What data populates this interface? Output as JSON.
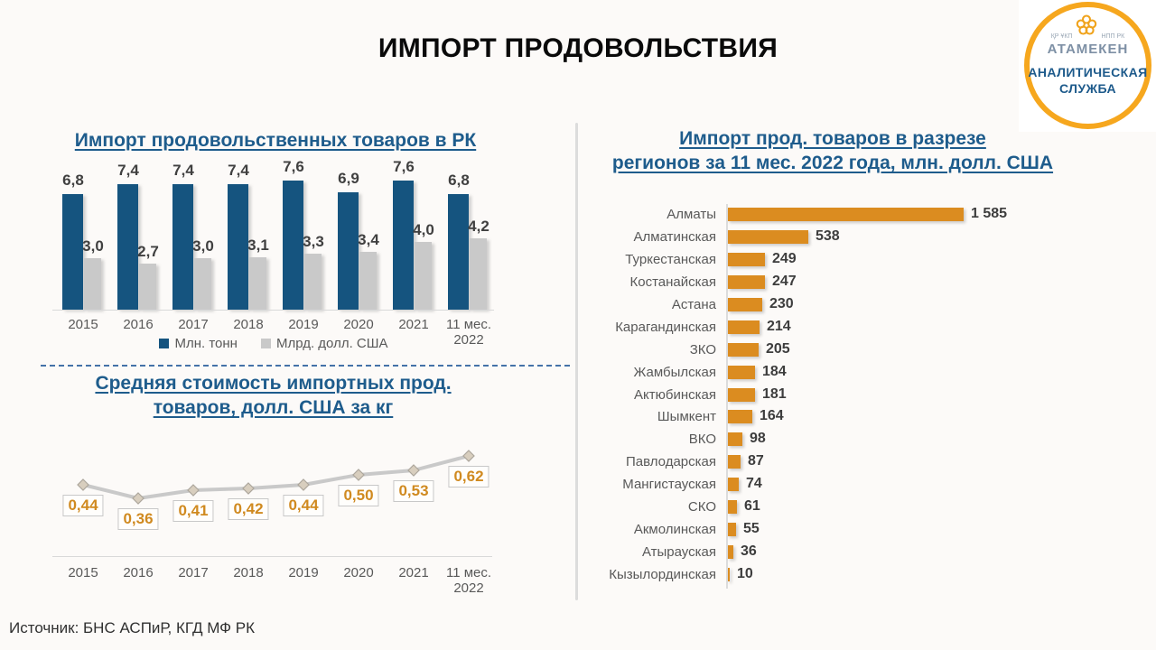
{
  "page": {
    "title": "ИМПОРТ ПРОДОВОЛЬСТВИЯ",
    "source": "Источник: БНС АСПиР, КГД МФ РК"
  },
  "logo": {
    "small_left": "ҚР ҰКП",
    "small_right": "НПП РК",
    "brand": "АТАМЕКЕН",
    "line1": "АНАЛИТИЧЕСКАЯ",
    "line2": "СЛУЖБА"
  },
  "colors": {
    "background": "#FCFAF8",
    "title_blue": "#1E5C8C",
    "bar_blue": "#15547F",
    "bar_gray": "#C9C9C9",
    "bar_orange": "#DB8C20",
    "value_dark": "#404040",
    "axis_gray": "#595959",
    "line_gray": "#C9C9C9",
    "marker_tan": "#D8CEBE",
    "label_orange": "#D08A20",
    "logo_ring_orange": "#F6A71E"
  },
  "chart_data": [
    {
      "id": "imports-food-rk",
      "type": "bar",
      "title": "Импорт продовольственных товаров в РК",
      "title_lines": [
        "Импорт продовольственных товаров в РК"
      ],
      "categories": [
        "2015",
        "2016",
        "2017",
        "2018",
        "2019",
        "2020",
        "2021",
        "11 мес. 2022"
      ],
      "series": [
        {
          "name": "Млн. тонн",
          "color": "#15547F",
          "values": [
            6.8,
            7.4,
            7.4,
            7.4,
            7.6,
            6.9,
            7.6,
            6.8
          ],
          "labels": [
            "6,8",
            "7,4",
            "7,4",
            "7,4",
            "7,6",
            "6,9",
            "7,6",
            "6,8"
          ]
        },
        {
          "name": "Млрд. долл. США",
          "color": "#C9C9C9",
          "values": [
            3.0,
            2.7,
            3.0,
            3.1,
            3.3,
            3.4,
            4.0,
            4.2
          ],
          "labels": [
            "3,0",
            "2,7",
            "3,0",
            "3,1",
            "3,3",
            "3,4",
            "4,0",
            "4,2"
          ]
        }
      ],
      "ylim": [
        0,
        8
      ],
      "grid": false,
      "legend_position": "bottom"
    },
    {
      "id": "avg-import-cost",
      "type": "line",
      "title": "Средняя стоимость импортных прод. товаров, долл. США за кг",
      "title_lines": [
        "Средняя стоимость импортных прод.",
        "товаров, долл. США за кг"
      ],
      "categories": [
        "2015",
        "2016",
        "2017",
        "2018",
        "2019",
        "2020",
        "2021",
        "11 мес. 2022"
      ],
      "values": [
        0.44,
        0.36,
        0.41,
        0.42,
        0.44,
        0.5,
        0.53,
        0.62
      ],
      "labels": [
        "0,44",
        "0,36",
        "0,41",
        "0,42",
        "0,44",
        "0,50",
        "0,53",
        "0,62"
      ],
      "ylim": [
        0,
        0.75
      ],
      "grid": false,
      "marker": "diamond"
    },
    {
      "id": "imports-by-region",
      "type": "bar",
      "orientation": "horizontal",
      "title": "Импорт прод. товаров в разрезе регионов за 11 мес. 2022 года, млн. долл. США",
      "title_lines": [
        "Импорт прод. товаров в разрезе",
        "регионов за 11 мес. 2022 года, млн. долл. США"
      ],
      "categories": [
        "Алматы",
        "Алматинская",
        "Туркестанская",
        "Костанайская",
        "Астана",
        "Карагандинская",
        "ЗКО",
        "Жамбылская",
        "Актюбинская",
        "Шымкент",
        "ВКО",
        "Павлодарская",
        "Мангистауская",
        "СКО",
        "Акмолинская",
        "Атырауская",
        "Кызылординская"
      ],
      "values": [
        1585,
        538,
        249,
        247,
        230,
        214,
        205,
        184,
        181,
        164,
        98,
        87,
        74,
        61,
        55,
        36,
        10
      ],
      "labels": [
        "1 585",
        "538",
        "249",
        "247",
        "230",
        "214",
        "205",
        "184",
        "181",
        "164",
        "98",
        "87",
        "74",
        "61",
        "55",
        "36",
        "10"
      ],
      "xlim": [
        0,
        1650
      ],
      "grid": false
    }
  ]
}
